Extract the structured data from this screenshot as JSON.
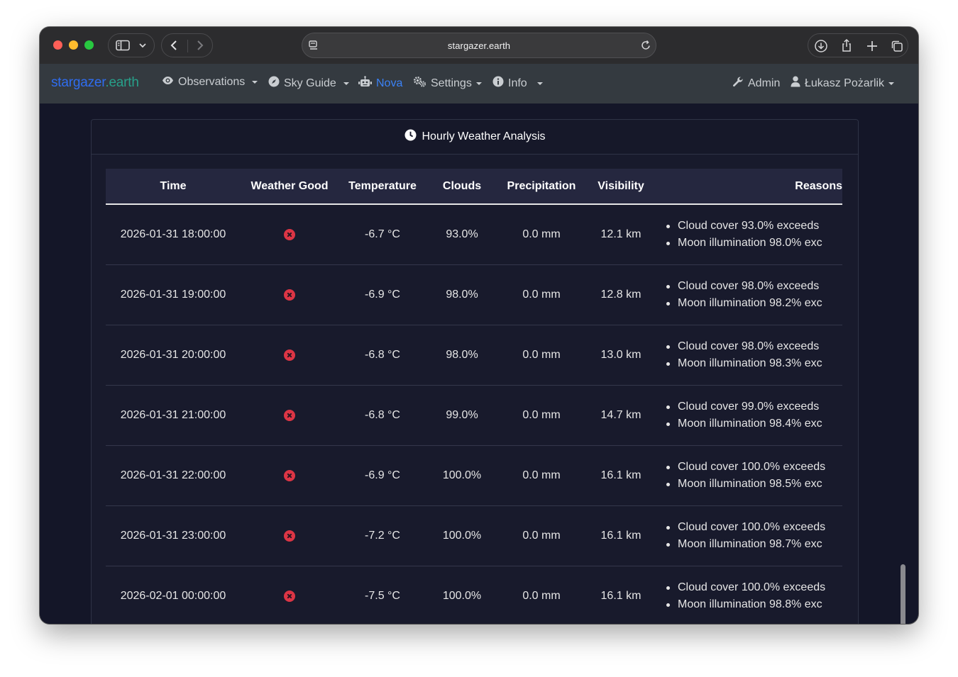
{
  "browser": {
    "url": "stargazer.earth"
  },
  "navbar": {
    "brand_part1": "stargazer",
    "brand_part2": ".earth",
    "items": [
      {
        "label": "Observations",
        "icon": "eye-icon"
      },
      {
        "label": "Sky Guide",
        "icon": "compass-icon"
      },
      {
        "label": "Nova",
        "icon": "robot-icon",
        "active": true
      },
      {
        "label": "Settings",
        "icon": "cogs-icon"
      },
      {
        "label": "Info",
        "icon": "info-circle-icon"
      }
    ],
    "admin_label": "Admin",
    "user_label": "Łukasz Pożarlik"
  },
  "card": {
    "title": "Hourly Weather Analysis",
    "title_icon": "clock-icon"
  },
  "table": {
    "headers": {
      "time": "Time",
      "weather_good": "Weather Good",
      "temperature": "Temperature",
      "clouds": "Clouds",
      "precipitation": "Precipitation",
      "visibility": "Visibility",
      "reasons": "Reasons"
    },
    "rows": [
      {
        "time": "2026-01-31 18:00:00",
        "temperature": "-6.7 °C",
        "clouds": "93.0%",
        "precipitation": "0.0 mm",
        "visibility": "12.1 km",
        "reason1": "Cloud cover 93.0% exceeds",
        "reason2": "Moon illumination 98.0% exc"
      },
      {
        "time": "2026-01-31 19:00:00",
        "temperature": "-6.9 °C",
        "clouds": "98.0%",
        "precipitation": "0.0 mm",
        "visibility": "12.8 km",
        "reason1": "Cloud cover 98.0% exceeds",
        "reason2": "Moon illumination 98.2% exc"
      },
      {
        "time": "2026-01-31 20:00:00",
        "temperature": "-6.8 °C",
        "clouds": "98.0%",
        "precipitation": "0.0 mm",
        "visibility": "13.0 km",
        "reason1": "Cloud cover 98.0% exceeds",
        "reason2": "Moon illumination 98.3% exc"
      },
      {
        "time": "2026-01-31 21:00:00",
        "temperature": "-6.8 °C",
        "clouds": "99.0%",
        "precipitation": "0.0 mm",
        "visibility": "14.7 km",
        "reason1": "Cloud cover 99.0% exceeds",
        "reason2": "Moon illumination 98.4% exc"
      },
      {
        "time": "2026-01-31 22:00:00",
        "temperature": "-6.9 °C",
        "clouds": "100.0%",
        "precipitation": "0.0 mm",
        "visibility": "16.1 km",
        "reason1": "Cloud cover 100.0% exceeds",
        "reason2": "Moon illumination 98.5% exc"
      },
      {
        "time": "2026-01-31 23:00:00",
        "temperature": "-7.2 °C",
        "clouds": "100.0%",
        "precipitation": "0.0 mm",
        "visibility": "16.1 km",
        "reason1": "Cloud cover 100.0% exceeds",
        "reason2": "Moon illumination 98.7% exc"
      },
      {
        "time": "2026-02-01 00:00:00",
        "temperature": "-7.5 °C",
        "clouds": "100.0%",
        "precipitation": "0.0 mm",
        "visibility": "16.1 km",
        "reason1": "Cloud cover 100.0% exceeds",
        "reason2": "Moon illumination 98.8% exc"
      }
    ]
  },
  "colors": {
    "brand_blue": "#2f6df0",
    "brand_teal": "#27a08a",
    "active_nav": "#3b82f6",
    "bad_status": "#dc3545",
    "page_bg": "#141628",
    "navbar_bg": "#343a40"
  }
}
